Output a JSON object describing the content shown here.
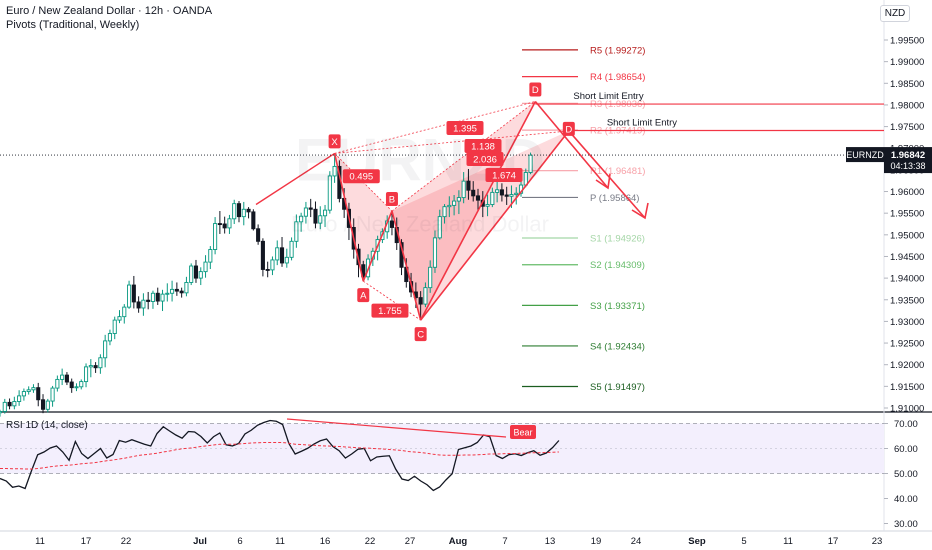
{
  "header": {
    "title": "Euro / New Zealand Dollar · 12h · OANDA",
    "pivots": "Pivots (Traditional, Weekly)",
    "currency": "NZD"
  },
  "price_tag": {
    "symbol": "EURNZD",
    "price": "1.96842",
    "countdown": "04:13:38"
  },
  "watermark": {
    "symbol": "EURNZD",
    "name": "Euro / New Zealand Dollar"
  },
  "colors": {
    "pattern": "#f23645",
    "bull": "#089981",
    "bear": "#131722",
    "rsi": "#131722",
    "rsi_ma": "#f23645",
    "rsi_band": "#f3effd"
  },
  "chart_data": [
    {
      "type": "candlestick",
      "x_labels": [
        "11",
        "17",
        "22",
        "Jul",
        "6",
        "11",
        "16",
        "22",
        "27",
        "Aug",
        "7",
        "13",
        "19",
        "24",
        "Sep",
        "5",
        "11",
        "17",
        "23"
      ],
      "y_ticks": [
        "1.99500",
        "1.99000",
        "1.98500",
        "1.98000",
        "1.97500",
        "1.97000",
        "1.96500",
        "1.96000",
        "1.95500",
        "1.95000",
        "1.94500",
        "1.94000",
        "1.93500",
        "1.93000",
        "1.92500",
        "1.92000",
        "1.91500",
        "1.91000"
      ],
      "ylim": [
        1.9093,
        1.9988
      ],
      "pivots": [
        {
          "label": "R5 (1.99272)",
          "value": 1.99272,
          "color": "#b71c1c"
        },
        {
          "label": "R4 (1.98654)",
          "value": 1.98654,
          "color": "#f23645"
        },
        {
          "label": "R3 (1.98036)",
          "value": 1.98036,
          "color": "#f7a1a8"
        },
        {
          "label": "R2 (1.97419)",
          "value": 1.97419,
          "color": "#f7a1a8"
        },
        {
          "label": "R1 (1.96481)",
          "value": 1.96481,
          "color": "#f7a1a8"
        },
        {
          "label": "P (1.95864)",
          "value": 1.95864,
          "color": "#787b86"
        },
        {
          "label": "S1 (1.94926)",
          "value": 1.94926,
          "color": "#a5d6a7"
        },
        {
          "label": "S2 (1.94309)",
          "value": 1.94309,
          "color": "#66bb6a"
        },
        {
          "label": "S3 (1.93371)",
          "value": 1.93371,
          "color": "#43a047"
        },
        {
          "label": "S4 (1.92434)",
          "value": 1.92434,
          "color": "#2e7d32"
        },
        {
          "label": "S5 (1.91497)",
          "value": 1.91497,
          "color": "#1b5e20"
        }
      ],
      "last_price": 1.96842,
      "pattern_points": [
        {
          "label": "X",
          "bar": 70,
          "price": 1.9688
        },
        {
          "label": "A",
          "bar": 76,
          "price": 1.9393
        },
        {
          "label": "B",
          "bar": 82,
          "price": 1.9555
        },
        {
          "label": "C",
          "bar": 88,
          "price": 1.9303
        },
        {
          "label": "D",
          "bar": 112,
          "price": 1.9808
        },
        {
          "label": "D",
          "bar": 119,
          "price": 1.974
        }
      ],
      "ratios": [
        "0.495",
        "1.755",
        "1.395",
        "1.138",
        "2.036",
        "1.674"
      ],
      "entries": [
        {
          "label": "Short Limit Entry",
          "price": 1.9802
        },
        {
          "label": "Short Limit Entry",
          "price": 1.9741
        }
      ],
      "candles": [
        [
          1.9089,
          1.9096,
          1.908,
          1.9092
        ],
        [
          1.9092,
          1.9121,
          1.9087,
          1.9113
        ],
        [
          1.9113,
          1.9122,
          1.9097,
          1.9105
        ],
        [
          1.9105,
          1.9126,
          1.9097,
          1.9115
        ],
        [
          1.9115,
          1.9141,
          1.9105,
          1.9128
        ],
        [
          1.9128,
          1.9145,
          1.9117,
          1.9138
        ],
        [
          1.9138,
          1.915,
          1.9131,
          1.9142
        ],
        [
          1.9142,
          1.9155,
          1.9135,
          1.9147
        ],
        [
          1.9147,
          1.9158,
          1.9104,
          1.9119
        ],
        [
          1.9119,
          1.9132,
          1.9088,
          1.9097
        ],
        [
          1.9097,
          1.9121,
          1.909,
          1.9116
        ],
        [
          1.9116,
          1.9151,
          1.9103,
          1.9146
        ],
        [
          1.9146,
          1.9175,
          1.9138,
          1.9166
        ],
        [
          1.9166,
          1.9191,
          1.9153,
          1.9176
        ],
        [
          1.9176,
          1.9183,
          1.9153,
          1.916
        ],
        [
          1.916,
          1.9168,
          1.9135,
          1.9147
        ],
        [
          1.9147,
          1.9157,
          1.9139,
          1.9149
        ],
        [
          1.9149,
          1.9166,
          1.9143,
          1.9161
        ],
        [
          1.9161,
          1.9203,
          1.9148,
          1.9195
        ],
        [
          1.9195,
          1.9213,
          1.9171,
          1.9198
        ],
        [
          1.9198,
          1.9206,
          1.9181,
          1.9193
        ],
        [
          1.9193,
          1.9224,
          1.9179,
          1.9216
        ],
        [
          1.9216,
          1.9269,
          1.9194,
          1.9255
        ],
        [
          1.9255,
          1.9281,
          1.9245,
          1.9272
        ],
        [
          1.9272,
          1.9311,
          1.9259,
          1.9303
        ],
        [
          1.9303,
          1.9326,
          1.9296,
          1.9311
        ],
        [
          1.9311,
          1.934,
          1.9295,
          1.9333
        ],
        [
          1.9333,
          1.9394,
          1.9329,
          1.9384
        ],
        [
          1.9384,
          1.9405,
          1.933,
          1.9345
        ],
        [
          1.9345,
          1.9358,
          1.932,
          1.9331
        ],
        [
          1.9331,
          1.9365,
          1.9313,
          1.9349
        ],
        [
          1.9349,
          1.9368,
          1.9328,
          1.9346
        ],
        [
          1.9346,
          1.9371,
          1.9329,
          1.9365
        ],
        [
          1.9365,
          1.9378,
          1.9338,
          1.9347
        ],
        [
          1.9347,
          1.9373,
          1.9324,
          1.9363
        ],
        [
          1.9363,
          1.9388,
          1.9346,
          1.9365
        ],
        [
          1.9365,
          1.9394,
          1.9346,
          1.9374
        ],
        [
          1.9374,
          1.939,
          1.9359,
          1.937
        ],
        [
          1.937,
          1.9378,
          1.9355,
          1.9366
        ],
        [
          1.9366,
          1.9403,
          1.9358,
          1.939
        ],
        [
          1.939,
          1.9434,
          1.9384,
          1.9428
        ],
        [
          1.9428,
          1.9442,
          1.9389,
          1.94
        ],
        [
          1.94,
          1.9425,
          1.9384,
          1.9415
        ],
        [
          1.9415,
          1.9453,
          1.9401,
          1.9437
        ],
        [
          1.9437,
          1.9474,
          1.9421,
          1.9466
        ],
        [
          1.9466,
          1.9541,
          1.9455,
          1.9526
        ],
        [
          1.9526,
          1.9555,
          1.9502,
          1.9525
        ],
        [
          1.9525,
          1.9542,
          1.9503,
          1.9516
        ],
        [
          1.9516,
          1.9546,
          1.9502,
          1.9537
        ],
        [
          1.9537,
          1.9581,
          1.9525,
          1.9572
        ],
        [
          1.9572,
          1.9578,
          1.9529,
          1.9542
        ],
        [
          1.9542,
          1.9576,
          1.9522,
          1.9559
        ],
        [
          1.9559,
          1.9564,
          1.9538,
          1.9553
        ],
        [
          1.9553,
          1.9559,
          1.951,
          1.9514
        ],
        [
          1.9514,
          1.9524,
          1.9477,
          1.9485
        ],
        [
          1.9485,
          1.9492,
          1.9404,
          1.942
        ],
        [
          1.942,
          1.9438,
          1.9402,
          1.9419
        ],
        [
          1.9419,
          1.945,
          1.9407,
          1.9442
        ],
        [
          1.9442,
          1.9487,
          1.943,
          1.947
        ],
        [
          1.947,
          1.9495,
          1.9426,
          1.9435
        ],
        [
          1.9435,
          1.9468,
          1.9424,
          1.9448
        ],
        [
          1.9448,
          1.9494,
          1.9441,
          1.9485
        ],
        [
          1.9485,
          1.9547,
          1.947,
          1.953
        ],
        [
          1.953,
          1.9551,
          1.9507,
          1.9543
        ],
        [
          1.9543,
          1.9576,
          1.9526,
          1.9562
        ],
        [
          1.9562,
          1.9583,
          1.9541,
          1.9559
        ],
        [
          1.9559,
          1.9577,
          1.9515,
          1.9527
        ],
        [
          1.9527,
          1.9566,
          1.9513,
          1.9544
        ],
        [
          1.9544,
          1.9569,
          1.9518,
          1.9557
        ],
        [
          1.9557,
          1.9647,
          1.9549,
          1.9636
        ],
        [
          1.9636,
          1.9688,
          1.962,
          1.9658
        ],
        [
          1.9658,
          1.9672,
          1.9575,
          1.9584
        ],
        [
          1.9584,
          1.9608,
          1.9539,
          1.9559
        ],
        [
          1.9559,
          1.9574,
          1.9488,
          1.9517
        ],
        [
          1.9517,
          1.9538,
          1.9445,
          1.9467
        ],
        [
          1.9467,
          1.9479,
          1.9402,
          1.9431
        ],
        [
          1.9431,
          1.944,
          1.9393,
          1.9403
        ],
        [
          1.9403,
          1.9455,
          1.9395,
          1.9444
        ],
        [
          1.9444,
          1.947,
          1.9428,
          1.9462
        ],
        [
          1.9462,
          1.9498,
          1.9441,
          1.9489
        ],
        [
          1.9489,
          1.9515,
          1.9481,
          1.9507
        ],
        [
          1.9507,
          1.9545,
          1.9491,
          1.9532
        ],
        [
          1.9532,
          1.9555,
          1.9499,
          1.9517
        ],
        [
          1.9517,
          1.954,
          1.9465,
          1.9482
        ],
        [
          1.9482,
          1.949,
          1.9407,
          1.9425
        ],
        [
          1.9425,
          1.9446,
          1.9378,
          1.9392
        ],
        [
          1.9392,
          1.9412,
          1.9356,
          1.9368
        ],
        [
          1.9368,
          1.939,
          1.9331,
          1.9355
        ],
        [
          1.9355,
          1.937,
          1.9303,
          1.934
        ],
        [
          1.934,
          1.939,
          1.9333,
          1.9378
        ],
        [
          1.9378,
          1.9441,
          1.9366,
          1.9425
        ],
        [
          1.9425,
          1.951,
          1.9412,
          1.9493
        ],
        [
          1.9493,
          1.9558,
          1.9489,
          1.9542
        ],
        [
          1.9542,
          1.9571,
          1.9526,
          1.9565
        ],
        [
          1.9565,
          1.9589,
          1.9541,
          1.9568
        ],
        [
          1.9568,
          1.9592,
          1.9545,
          1.9578
        ],
        [
          1.9578,
          1.9603,
          1.9548,
          1.9586
        ],
        [
          1.9586,
          1.9645,
          1.9573,
          1.9624
        ],
        [
          1.9624,
          1.9652,
          1.9581,
          1.9603
        ],
        [
          1.9603,
          1.9624,
          1.9577,
          1.959
        ],
        [
          1.959,
          1.9606,
          1.9555,
          1.958
        ],
        [
          1.958,
          1.9601,
          1.9541,
          1.9566
        ],
        [
          1.9566,
          1.9593,
          1.9543,
          1.957
        ],
        [
          1.957,
          1.9609,
          1.9564,
          1.9598
        ],
        [
          1.9598,
          1.9624,
          1.9575,
          1.9604
        ],
        [
          1.9604,
          1.9619,
          1.9577,
          1.9592
        ],
        [
          1.9592,
          1.9611,
          1.9569,
          1.9589
        ],
        [
          1.9589,
          1.9614,
          1.9562,
          1.9593
        ],
        [
          1.9593,
          1.961,
          1.957,
          1.9596
        ],
        [
          1.9596,
          1.9624,
          1.9588,
          1.9615
        ],
        [
          1.9615,
          1.9653,
          1.961,
          1.9644
        ],
        [
          1.9644,
          1.969,
          1.964,
          1.9684
        ]
      ]
    },
    {
      "type": "line",
      "title": "RSI 1D (14, close)",
      "y_ticks": [
        "70.00",
        "60.00",
        "50.00",
        "40.00",
        "30.00"
      ],
      "ylim": [
        28,
        72
      ],
      "band": [
        50,
        70
      ],
      "divergence_label": "Bear",
      "rsi": [
        48.0,
        47.0,
        44.5,
        45.0,
        44.0,
        51.0,
        57.5,
        58.6,
        60.2,
        61.0,
        58.6,
        55.3,
        62.8,
        58.0,
        56.0,
        58.0,
        60.0,
        56.2,
        57.6,
        63.2,
        62.5,
        63.5,
        62.6,
        61.7,
        61.0,
        66.0,
        68.7,
        67.0,
        65.4,
        64.1,
        66.8,
        66.6,
        64.8,
        62.2,
        64.7,
        66.2,
        61.5,
        61.0,
        62.0,
        65.8,
        67.3,
        69.3,
        70.4,
        71.2,
        70.9,
        69.6,
        62.0,
        57.8,
        58.9,
        60.1,
        61.8,
        63.1,
        63.8,
        60.8,
        59.1,
        56.2,
        57.8,
        59.7,
        60.0,
        55.1,
        56.6,
        56.9,
        57.1,
        51.8,
        47.8,
        47.2,
        48.9,
        47.0,
        45.5,
        43.2,
        44.6,
        47.4,
        49.9,
        59.6,
        60.3,
        61.0,
        62.4,
        65.4,
        64.7,
        57.2,
        56.0,
        57.5,
        57.9,
        57.2,
        58.3,
        59.1,
        57.3,
        58.2,
        60.4,
        63.2
      ],
      "rsi_ma": [
        52.0,
        52.0,
        51.9,
        51.9,
        51.8,
        51.8,
        52.0,
        52.3,
        52.7,
        53.0,
        53.2,
        53.3,
        53.6,
        53.9,
        54.1,
        54.3,
        54.7,
        55.1,
        55.4,
        55.8,
        56.2,
        56.7,
        57.2,
        57.5,
        57.8,
        58.1,
        58.6,
        59.0,
        59.5,
        59.9,
        60.1,
        60.4,
        60.8,
        61.1,
        61.4,
        61.7,
        61.7,
        61.7,
        61.8,
        62.0,
        62.2,
        62.3,
        62.4,
        62.4,
        62.4,
        62.4,
        62.1,
        61.7,
        61.6,
        61.4,
        61.3,
        61.1,
        61.0,
        60.9,
        60.8,
        60.6,
        60.5,
        60.3,
        60.2,
        60.1,
        59.9,
        59.8,
        59.6,
        59.4,
        59.2,
        58.8,
        58.6,
        58.4,
        58.1,
        57.7,
        57.4,
        57.3,
        57.3,
        57.3,
        57.4,
        57.4,
        57.5,
        57.6,
        57.8,
        57.8,
        57.9,
        58.0,
        58.0,
        58.1,
        58.2,
        58.3,
        58.3,
        58.4,
        58.5,
        58.6
      ]
    }
  ]
}
